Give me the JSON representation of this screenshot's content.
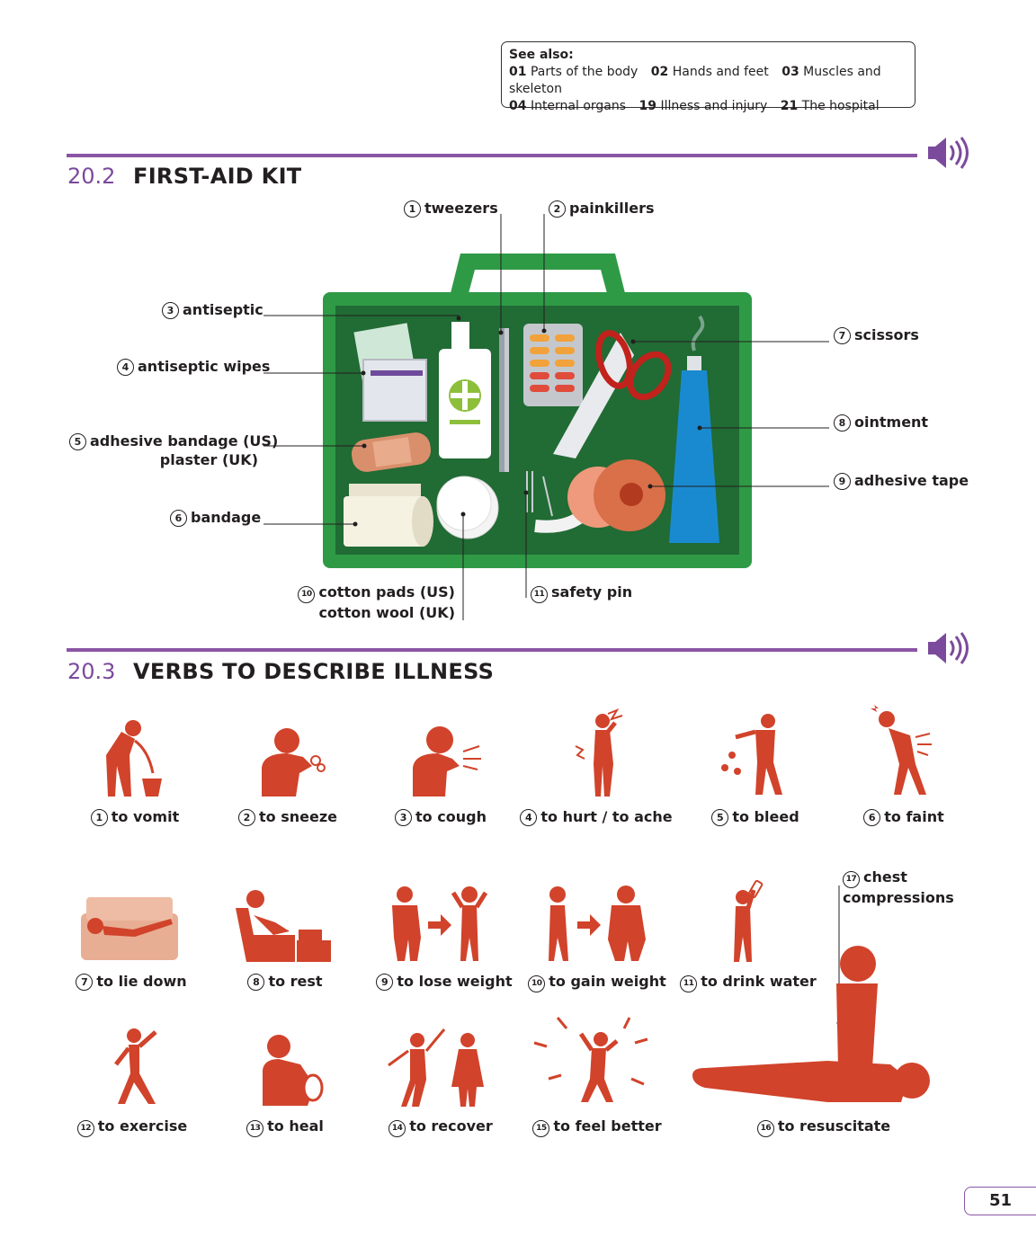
{
  "see_also": {
    "title": "See also:",
    "row1": [
      {
        "num": "01",
        "text": "Parts of the body"
      },
      {
        "num": "02",
        "text": "Hands and feet"
      },
      {
        "num": "03",
        "text": "Muscles and skeleton"
      }
    ],
    "row2": [
      {
        "num": "04",
        "text": "Internal organs"
      },
      {
        "num": "19",
        "text": "Illness and injury"
      },
      {
        "num": "21",
        "text": "The hospital"
      }
    ]
  },
  "section1": {
    "number": "20.2",
    "title": "FIRST-AID KIT",
    "items": [
      {
        "n": "1",
        "label": "tweezers"
      },
      {
        "n": "2",
        "label": "painkillers"
      },
      {
        "n": "3",
        "label": "antiseptic"
      },
      {
        "n": "4",
        "label": "antiseptic wipes"
      },
      {
        "n": "5",
        "label": "adhesive bandage (US)",
        "label2": "plaster (UK)"
      },
      {
        "n": "6",
        "label": "bandage"
      },
      {
        "n": "7",
        "label": "scissors"
      },
      {
        "n": "8",
        "label": "ointment"
      },
      {
        "n": "9",
        "label": "adhesive tape"
      },
      {
        "n": "10",
        "label": "cotton pads (US)",
        "label2": "cotton wool (UK)"
      },
      {
        "n": "11",
        "label": "safety pin"
      }
    ]
  },
  "section2": {
    "number": "20.3",
    "title": "VERBS TO DESCRIBE ILLNESS",
    "items": [
      {
        "n": "1",
        "label": "to vomit"
      },
      {
        "n": "2",
        "label": "to sneeze"
      },
      {
        "n": "3",
        "label": "to cough"
      },
      {
        "n": "4",
        "label": "to hurt / to ache"
      },
      {
        "n": "5",
        "label": "to bleed"
      },
      {
        "n": "6",
        "label": "to faint"
      },
      {
        "n": "7",
        "label": "to lie down"
      },
      {
        "n": "8",
        "label": "to rest"
      },
      {
        "n": "9",
        "label": "to lose weight"
      },
      {
        "n": "10",
        "label": "to gain weight"
      },
      {
        "n": "11",
        "label": "to drink water"
      },
      {
        "n": "12",
        "label": "to exercise"
      },
      {
        "n": "13",
        "label": "to heal"
      },
      {
        "n": "14",
        "label": "to recover"
      },
      {
        "n": "15",
        "label": "to feel better"
      },
      {
        "n": "16",
        "label": "to resuscitate"
      },
      {
        "n": "17",
        "label": "chest",
        "label2": "compressions"
      }
    ]
  },
  "page_number": "51",
  "colors": {
    "accent": "#8a55a5",
    "kit_green": "#2f9a46",
    "kit_dark": "#216b34",
    "figure_red": "#d1432b",
    "ointment_blue": "#1a8ad0"
  },
  "icons": [
    "speaker-icon",
    "first-aid-kit-illustration",
    "verb-pictograms"
  ]
}
